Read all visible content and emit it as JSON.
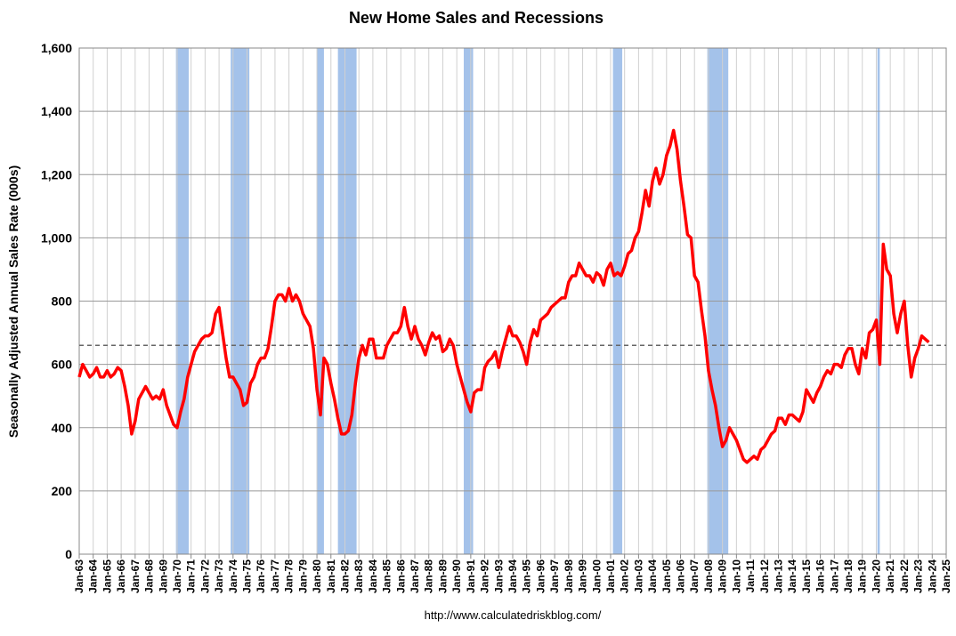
{
  "chart_data": {
    "type": "line",
    "title": "New Home Sales and Recessions",
    "ylabel": "Seasonally Adjusted Annual Sales Rate (000s)",
    "source": "http://www.calculatedriskblog.com/",
    "ylim": [
      0,
      1600
    ],
    "yticks": [
      0,
      200,
      400,
      600,
      800,
      {
        "value": 1000,
        "label": "1,000"
      },
      {
        "value": 1200,
        "label": "1,200"
      },
      {
        "value": 1400,
        "label": "1,400"
      },
      {
        "value": 1600,
        "label": "1,600"
      }
    ],
    "xlim": [
      "Jan-63",
      "Jan-25"
    ],
    "xticks": [
      "Jan-63",
      "Jan-64",
      "Jan-65",
      "Jan-66",
      "Jan-67",
      "Jan-68",
      "Jan-69",
      "Jan-70",
      "Jan-71",
      "Jan-72",
      "Jan-73",
      "Jan-74",
      "Jan-75",
      "Jan-76",
      "Jan-77",
      "Jan-78",
      "Jan-79",
      "Jan-80",
      "Jan-81",
      "Jan-82",
      "Jan-83",
      "Jan-84",
      "Jan-85",
      "Jan-86",
      "Jan-87",
      "Jan-88",
      "Jan-89",
      "Jan-90",
      "Jan-91",
      "Jan-92",
      "Jan-93",
      "Jan-94",
      "Jan-95",
      "Jan-96",
      "Jan-97",
      "Jan-98",
      "Jan-99",
      "Jan-00",
      "Jan-01",
      "Jan-02",
      "Jan-03",
      "Jan-04",
      "Jan-05",
      "Jan-06",
      "Jan-07",
      "Jan-08",
      "Jan-09",
      "Jan-10",
      "Jan-11",
      "Jan-12",
      "Jan-13",
      "Jan-14",
      "Jan-15",
      "Jan-16",
      "Jan-17",
      "Jan-18",
      "Jan-19",
      "Jan-20",
      "Jan-21",
      "Jan-22",
      "Jan-23",
      "Jan-24",
      "Jan-25"
    ],
    "grid": true,
    "reference_line": 660,
    "recession_color": "#a4c2ea",
    "recessions": [
      {
        "start": "Dec-69",
        "end": "Nov-70"
      },
      {
        "start": "Nov-73",
        "end": "Mar-75"
      },
      {
        "start": "Jan-80",
        "end": "Jul-80"
      },
      {
        "start": "Jul-81",
        "end": "Nov-82"
      },
      {
        "start": "Jul-90",
        "end": "Mar-91"
      },
      {
        "start": "Mar-01",
        "end": "Nov-01"
      },
      {
        "start": "Dec-07",
        "end": "Jun-09"
      },
      {
        "start": "Feb-20",
        "end": "Apr-20"
      }
    ],
    "x": [
      "Jan-63",
      "Apr-63",
      "Jul-63",
      "Oct-63",
      "Jan-64",
      "Apr-64",
      "Jul-64",
      "Oct-64",
      "Jan-65",
      "Apr-65",
      "Jul-65",
      "Oct-65",
      "Jan-66",
      "Apr-66",
      "Jul-66",
      "Oct-66",
      "Jan-67",
      "Apr-67",
      "Jul-67",
      "Oct-67",
      "Jan-68",
      "Apr-68",
      "Jul-68",
      "Oct-68",
      "Jan-69",
      "Apr-69",
      "Jul-69",
      "Oct-69",
      "Jan-70",
      "Apr-70",
      "Jul-70",
      "Oct-70",
      "Jan-71",
      "Apr-71",
      "Jul-71",
      "Oct-71",
      "Jan-72",
      "Apr-72",
      "Jul-72",
      "Oct-72",
      "Jan-73",
      "Apr-73",
      "Jul-73",
      "Oct-73",
      "Jan-74",
      "Apr-74",
      "Jul-74",
      "Oct-74",
      "Jan-75",
      "Apr-75",
      "Jul-75",
      "Oct-75",
      "Jan-76",
      "Apr-76",
      "Jul-76",
      "Oct-76",
      "Jan-77",
      "Apr-77",
      "Jul-77",
      "Oct-77",
      "Jan-78",
      "Apr-78",
      "Jul-78",
      "Oct-78",
      "Jan-79",
      "Apr-79",
      "Jul-79",
      "Oct-79",
      "Jan-80",
      "Apr-80",
      "Jul-80",
      "Oct-80",
      "Jan-81",
      "Apr-81",
      "Jul-81",
      "Oct-81",
      "Jan-82",
      "Apr-82",
      "Jul-82",
      "Oct-82",
      "Jan-83",
      "Apr-83",
      "Jul-83",
      "Oct-83",
      "Jan-84",
      "Apr-84",
      "Jul-84",
      "Oct-84",
      "Jan-85",
      "Apr-85",
      "Jul-85",
      "Oct-85",
      "Jan-86",
      "Apr-86",
      "Jul-86",
      "Oct-86",
      "Jan-87",
      "Apr-87",
      "Jul-87",
      "Oct-87",
      "Jan-88",
      "Apr-88",
      "Jul-88",
      "Oct-88",
      "Jan-89",
      "Apr-89",
      "Jul-89",
      "Oct-89",
      "Jan-90",
      "Apr-90",
      "Jul-90",
      "Oct-90",
      "Jan-91",
      "Apr-91",
      "Jul-91",
      "Oct-91",
      "Jan-92",
      "Apr-92",
      "Jul-92",
      "Oct-92",
      "Jan-93",
      "Apr-93",
      "Jul-93",
      "Oct-93",
      "Jan-94",
      "Apr-94",
      "Jul-94",
      "Oct-94",
      "Jan-95",
      "Apr-95",
      "Jul-95",
      "Oct-95",
      "Jan-96",
      "Apr-96",
      "Jul-96",
      "Oct-96",
      "Jan-97",
      "Apr-97",
      "Jul-97",
      "Oct-97",
      "Jan-98",
      "Apr-98",
      "Jul-98",
      "Oct-98",
      "Jan-99",
      "Apr-99",
      "Jul-99",
      "Oct-99",
      "Jan-00",
      "Apr-00",
      "Jul-00",
      "Oct-00",
      "Jan-01",
      "Apr-01",
      "Jul-01",
      "Oct-01",
      "Jan-02",
      "Apr-02",
      "Jul-02",
      "Oct-02",
      "Jan-03",
      "Apr-03",
      "Jul-03",
      "Oct-03",
      "Jan-04",
      "Apr-04",
      "Jul-04",
      "Oct-04",
      "Jan-05",
      "Apr-05",
      "Jul-05",
      "Oct-05",
      "Jan-06",
      "Apr-06",
      "Jul-06",
      "Oct-06",
      "Jan-07",
      "Apr-07",
      "Jul-07",
      "Oct-07",
      "Jan-08",
      "Apr-08",
      "Jul-08",
      "Oct-08",
      "Jan-09",
      "Apr-09",
      "Jul-09",
      "Oct-09",
      "Jan-10",
      "Apr-10",
      "Jul-10",
      "Oct-10",
      "Jan-11",
      "Apr-11",
      "Jul-11",
      "Oct-11",
      "Jan-12",
      "Apr-12",
      "Jul-12",
      "Oct-12",
      "Jan-13",
      "Apr-13",
      "Jul-13",
      "Oct-13",
      "Jan-14",
      "Apr-14",
      "Jul-14",
      "Oct-14",
      "Jan-15",
      "Apr-15",
      "Jul-15",
      "Oct-15",
      "Jan-16",
      "Apr-16",
      "Jul-16",
      "Oct-16",
      "Jan-17",
      "Apr-17",
      "Jul-17",
      "Oct-17",
      "Jan-18",
      "Apr-18",
      "Jul-18",
      "Oct-18",
      "Jan-19",
      "Apr-19",
      "Jul-19",
      "Oct-19",
      "Jan-20",
      "Apr-20",
      "Jul-20",
      "Oct-20",
      "Jan-21",
      "Apr-21",
      "Jul-21",
      "Oct-21",
      "Jan-22",
      "Apr-22",
      "Jul-22",
      "Oct-22",
      "Jan-23",
      "Apr-23",
      "Jul-23",
      "Oct-23"
    ],
    "series": [
      {
        "color": "#ff0000",
        "values": [
          560,
          600,
          580,
          560,
          570,
          590,
          560,
          560,
          580,
          560,
          570,
          590,
          580,
          530,
          470,
          380,
          420,
          490,
          510,
          530,
          510,
          490,
          500,
          490,
          520,
          470,
          440,
          410,
          400,
          450,
          490,
          560,
          600,
          640,
          660,
          680,
          690,
          690,
          700,
          760,
          780,
          700,
          620,
          560,
          560,
          540,
          520,
          470,
          480,
          540,
          560,
          600,
          620,
          620,
          650,
          720,
          800,
          820,
          820,
          800,
          840,
          800,
          820,
          800,
          760,
          740,
          720,
          650,
          520,
          440,
          620,
          600,
          540,
          490,
          430,
          380,
          380,
          390,
          440,
          540,
          620,
          660,
          630,
          680,
          680,
          620,
          620,
          620,
          660,
          680,
          700,
          700,
          720,
          780,
          720,
          680,
          720,
          680,
          660,
          630,
          670,
          700,
          680,
          690,
          640,
          650,
          680,
          660,
          600,
          560,
          520,
          480,
          450,
          510,
          520,
          520,
          590,
          610,
          620,
          640,
          590,
          640,
          680,
          720,
          690,
          690,
          670,
          640,
          600,
          670,
          710,
          690,
          740,
          750,
          760,
          780,
          790,
          800,
          810,
          810,
          860,
          880,
          880,
          920,
          900,
          880,
          880,
          860,
          890,
          880,
          850,
          900,
          920,
          880,
          890,
          880,
          910,
          950,
          960,
          1000,
          1020,
          1080,
          1150,
          1100,
          1180,
          1220,
          1170,
          1200,
          1260,
          1290,
          1340,
          1280,
          1180,
          1100,
          1010,
          1000,
          880,
          860,
          770,
          690,
          580,
          520,
          470,
          400,
          340,
          360,
          400,
          380,
          360,
          330,
          300,
          290,
          300,
          310,
          300,
          330,
          340,
          360,
          380,
          390,
          430,
          430,
          410,
          440,
          440,
          430,
          420,
          450,
          520,
          500,
          480,
          510,
          530,
          560,
          580,
          570,
          600,
          600,
          590,
          630,
          650,
          650,
          600,
          570,
          650,
          620,
          700,
          710,
          740,
          600,
          980,
          900,
          880,
          760,
          700,
          760,
          800,
          660,
          560,
          620,
          650,
          690,
          680,
          670
        ]
      }
    ]
  }
}
